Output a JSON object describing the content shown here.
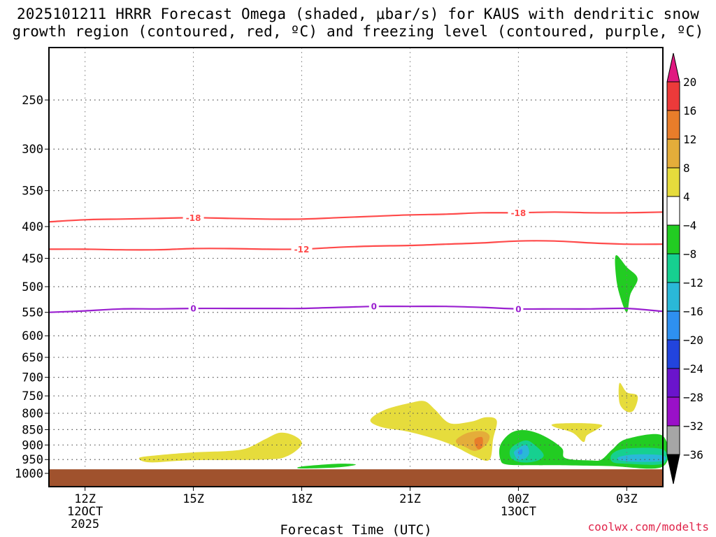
{
  "title_line1": "2025101211 HRRR Forecast Omega (shaded, μbar/s) for KAUS with dendritic snow",
  "title_line2": "growth region (contoured, red, ºC) and freezing level (contoured, purple, ºC)",
  "watermark": "coolwx.com/modelts",
  "chart_data": {
    "type": "area",
    "title": "2025101211 HRRR Forecast Omega (shaded, μbar/s) for KAUS with dendritic snow growth region (contoured, red, ºC) and freezing level (contoured, purple, ºC)",
    "xlabel": "Forecast Time (UTC)",
    "ylabel": "",
    "x_range_hours": [
      11,
      28
    ],
    "y_range_hPa": [
      1000,
      200
    ],
    "y_scale": "log",
    "grid": true,
    "x_ticks": [
      {
        "hour": 12,
        "label": "12Z",
        "sub1": "12OCT",
        "sub2": "2025"
      },
      {
        "hour": 15,
        "label": "15Z",
        "sub1": "",
        "sub2": ""
      },
      {
        "hour": 18,
        "label": "18Z",
        "sub1": "",
        "sub2": ""
      },
      {
        "hour": 21,
        "label": "21Z",
        "sub1": "",
        "sub2": ""
      },
      {
        "hour": 24,
        "label": "00Z",
        "sub1": "13OCT",
        "sub2": ""
      },
      {
        "hour": 27,
        "label": "03Z",
        "sub1": "",
        "sub2": ""
      }
    ],
    "y_ticks": [
      250,
      300,
      350,
      400,
      450,
      500,
      550,
      600,
      650,
      700,
      750,
      800,
      850,
      900,
      950,
      1000
    ],
    "ground_level_hPa": 985,
    "contours": [
      {
        "name": "-18",
        "color": "#ff4a4a",
        "points": [
          [
            11,
            393
          ],
          [
            12,
            390
          ],
          [
            13,
            389
          ],
          [
            14,
            388
          ],
          [
            15,
            387
          ],
          [
            16,
            388
          ],
          [
            17,
            389
          ],
          [
            18,
            389
          ],
          [
            19,
            387
          ],
          [
            20,
            385
          ],
          [
            21,
            383
          ],
          [
            22,
            382
          ],
          [
            23,
            380
          ],
          [
            24,
            380
          ],
          [
            25,
            379
          ],
          [
            26,
            380
          ],
          [
            27,
            380
          ],
          [
            28,
            379
          ]
        ],
        "labels": [
          15,
          24
        ]
      },
      {
        "name": "-12",
        "color": "#ff4a4a",
        "points": [
          [
            11,
            435
          ],
          [
            12,
            435
          ],
          [
            13,
            436
          ],
          [
            14,
            436
          ],
          [
            15,
            434
          ],
          [
            16,
            434
          ],
          [
            17,
            435
          ],
          [
            18,
            435
          ],
          [
            19,
            432
          ],
          [
            20,
            430
          ],
          [
            21,
            429
          ],
          [
            22,
            427
          ],
          [
            23,
            425
          ],
          [
            24,
            422
          ],
          [
            25,
            422
          ],
          [
            26,
            425
          ],
          [
            27,
            427
          ],
          [
            28,
            427
          ]
        ],
        "labels": [
          18
        ]
      },
      {
        "name": "0",
        "color": "#9a20d0",
        "points": [
          [
            11,
            550
          ],
          [
            12,
            547
          ],
          [
            13,
            543
          ],
          [
            14,
            543
          ],
          [
            15,
            542
          ],
          [
            16,
            542
          ],
          [
            17,
            542
          ],
          [
            18,
            542
          ],
          [
            19,
            540
          ],
          [
            20,
            538
          ],
          [
            21,
            538
          ],
          [
            22,
            538
          ],
          [
            23,
            540
          ],
          [
            24,
            543
          ],
          [
            25,
            543
          ],
          [
            26,
            543
          ],
          [
            27,
            542
          ],
          [
            28,
            548
          ]
        ],
        "labels": [
          15,
          20,
          24
        ]
      }
    ],
    "shaded_regions": [
      {
        "level": "4 to 8",
        "color": "#e6dc3c",
        "points": [
          [
            13.5,
            944
          ],
          [
            14,
            935
          ],
          [
            15,
            925
          ],
          [
            16,
            920
          ],
          [
            16.5,
            910
          ],
          [
            17,
            880
          ],
          [
            17.4,
            860
          ],
          [
            17.8,
            870
          ],
          [
            18,
            898
          ],
          [
            17.6,
            938
          ],
          [
            17,
            950
          ],
          [
            15,
            952
          ],
          [
            13.8,
            960
          ]
        ]
      },
      {
        "level": "4 to 8",
        "color": "#e6dc3c",
        "points": [
          [
            19.9,
            820
          ],
          [
            20.3,
            790
          ],
          [
            21,
            770
          ],
          [
            21.4,
            765
          ],
          [
            21.7,
            790
          ],
          [
            22.1,
            830
          ],
          [
            22.7,
            825
          ],
          [
            23.1,
            812
          ],
          [
            23.4,
            822
          ],
          [
            23.3,
            880
          ],
          [
            23.2,
            950
          ],
          [
            22.8,
            940
          ],
          [
            22,
            892
          ],
          [
            21,
            858
          ],
          [
            20.2,
            842
          ]
        ]
      },
      {
        "level": "4 to 8",
        "color": "#e6dc3c",
        "points": [
          [
            25,
            832
          ],
          [
            25.8,
            830
          ],
          [
            26.3,
            835
          ],
          [
            26.2,
            848
          ],
          [
            25.9,
            868
          ],
          [
            25.8,
            890
          ],
          [
            25.5,
            860
          ],
          [
            25,
            842
          ]
        ]
      },
      {
        "level": "4 to 8",
        "color": "#e6dc3c",
        "points": [
          [
            26.8,
            715
          ],
          [
            27,
            740
          ],
          [
            27.3,
            750
          ],
          [
            27.2,
            790
          ],
          [
            27,
            795
          ],
          [
            26.8,
            770
          ]
        ]
      },
      {
        "level": "8 to 12",
        "color": "#e4ad3a",
        "points": [
          [
            22.3,
            880
          ],
          [
            22.6,
            860
          ],
          [
            23,
            855
          ],
          [
            23.2,
            870
          ],
          [
            23.1,
            900
          ],
          [
            22.8,
            920
          ],
          [
            22.5,
            905
          ],
          [
            22.3,
            895
          ]
        ]
      },
      {
        "level": "12 to 16",
        "color": "#e87d2a",
        "points": [
          [
            22.8,
            880
          ],
          [
            23,
            875
          ],
          [
            23,
            905
          ],
          [
            22.9,
            915
          ],
          [
            22.8,
            900
          ]
        ]
      },
      {
        "level": "-8 to -4",
        "color": "#22cc22",
        "points": [
          [
            26.7,
            445
          ],
          [
            27,
            465
          ],
          [
            27.3,
            485
          ],
          [
            27.1,
            515
          ],
          [
            27,
            550
          ],
          [
            26.8,
            515
          ],
          [
            26.7,
            480
          ]
        ]
      },
      {
        "level": "-8 to -4",
        "color": "#22cc22",
        "points": [
          [
            18,
            975
          ],
          [
            19,
            965
          ],
          [
            19.5,
            968
          ],
          [
            19,
            978
          ],
          [
            18,
            982
          ]
        ]
      },
      {
        "level": "-8 to -4",
        "color": "#22cc22",
        "points": [
          [
            23.5,
            900
          ],
          [
            23.8,
            860
          ],
          [
            24.2,
            852
          ],
          [
            24.7,
            870
          ],
          [
            25.2,
            910
          ],
          [
            25.3,
            945
          ],
          [
            26,
            953
          ],
          [
            26.3,
            950
          ],
          [
            26.6,
            915
          ],
          [
            27,
            880
          ],
          [
            28,
            870
          ],
          [
            28,
            975
          ],
          [
            26.5,
            973
          ],
          [
            25,
            970
          ],
          [
            24.5,
            970
          ],
          [
            23.7,
            968
          ],
          [
            23.5,
            950
          ]
        ]
      },
      {
        "level": "-12 to -8",
        "color": "#16d090",
        "points": [
          [
            23.8,
            910
          ],
          [
            24.2,
            885
          ],
          [
            24.5,
            905
          ],
          [
            24.7,
            935
          ],
          [
            24.5,
            955
          ],
          [
            24.1,
            960
          ],
          [
            23.8,
            945
          ]
        ]
      },
      {
        "level": "-12 to -8",
        "color": "#16d090",
        "points": [
          [
            26.6,
            930
          ],
          [
            27,
            912
          ],
          [
            28,
            915
          ],
          [
            28,
            965
          ],
          [
            27,
            965
          ],
          [
            26.6,
            958
          ]
        ]
      },
      {
        "level": "-16 to -12",
        "color": "#2ab8d8",
        "points": [
          [
            23.9,
            920
          ],
          [
            24.2,
            900
          ],
          [
            24.3,
            925
          ],
          [
            24.2,
            945
          ],
          [
            24,
            950
          ],
          [
            23.9,
            935
          ]
        ]
      },
      {
        "level": "-16 to -12",
        "color": "#2ab8d8",
        "points": [
          [
            26.8,
            940
          ],
          [
            27.3,
            932
          ],
          [
            28,
            936
          ],
          [
            28,
            955
          ],
          [
            27.3,
            958
          ],
          [
            26.8,
            952
          ]
        ]
      },
      {
        "level": "-20 to -16",
        "color": "#2e90f0",
        "points": [
          [
            24,
            920
          ],
          [
            24.1,
            915
          ],
          [
            24.1,
            930
          ],
          [
            24,
            932
          ]
        ]
      }
    ],
    "colorbar": {
      "labels": [
        "20",
        "16",
        "12",
        "8",
        "4",
        "−4",
        "−8",
        "−12",
        "−16",
        "−20",
        "−24",
        "−28",
        "−32",
        "−36"
      ],
      "colors": [
        "#ec3a3a",
        "#e87d2a",
        "#e4ad3a",
        "#e6dc3c",
        "#ffffff",
        "#22cc22",
        "#16d090",
        "#2ab8d8",
        "#2e90f0",
        "#2244dd",
        "#6a14cc",
        "#9a10c8",
        "#a6a6a6"
      ],
      "top_arrow_color": "#e01880",
      "bottom_arrow_color": "#000000"
    }
  }
}
